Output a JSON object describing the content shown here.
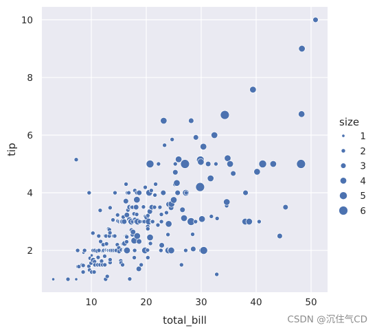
{
  "chart_data": {
    "type": "scatter",
    "title": "",
    "xlabel": "total_bill",
    "ylabel": "tip",
    "xlim": [
      1.0,
      53.0
    ],
    "ylim": [
      0.55,
      10.45
    ],
    "xticks": [
      10,
      20,
      30,
      40,
      50
    ],
    "yticks": [
      2,
      4,
      6,
      8,
      10
    ],
    "grid": true,
    "background": "#eaeaf2",
    "point_color": "#4c72b0",
    "legend": {
      "title": "size",
      "placement": "right",
      "entries": [
        1,
        2,
        3,
        4,
        5,
        6
      ]
    },
    "points": [
      [
        3.07,
        1.0,
        1
      ],
      [
        5.75,
        1.0,
        2
      ],
      [
        7.25,
        1.0,
        1
      ],
      [
        7.25,
        5.15,
        2
      ],
      [
        7.51,
        2.0,
        2
      ],
      [
        7.56,
        1.44,
        2
      ],
      [
        7.74,
        1.44,
        2
      ],
      [
        8.35,
        1.5,
        2
      ],
      [
        8.51,
        1.25,
        2
      ],
      [
        8.52,
        1.48,
        2
      ],
      [
        8.58,
        1.92,
        1
      ],
      [
        8.77,
        2.0,
        2
      ],
      [
        9.55,
        1.45,
        2
      ],
      [
        9.6,
        4.0,
        2
      ],
      [
        9.68,
        1.32,
        2
      ],
      [
        9.78,
        1.73,
        2
      ],
      [
        9.94,
        1.56,
        2
      ],
      [
        10.07,
        1.25,
        2
      ],
      [
        10.07,
        1.83,
        1
      ],
      [
        10.27,
        1.71,
        2
      ],
      [
        10.29,
        2.6,
        2
      ],
      [
        10.33,
        1.67,
        3
      ],
      [
        10.33,
        2.0,
        2
      ],
      [
        10.34,
        1.66,
        3
      ],
      [
        10.34,
        2.0,
        2
      ],
      [
        10.51,
        1.25,
        2
      ],
      [
        10.59,
        1.61,
        2
      ],
      [
        10.63,
        2.0,
        2
      ],
      [
        10.65,
        1.5,
        2
      ],
      [
        11.02,
        1.98,
        2
      ],
      [
        11.17,
        1.5,
        2
      ],
      [
        11.24,
        1.76,
        2
      ],
      [
        11.35,
        2.5,
        2
      ],
      [
        11.38,
        2.0,
        2
      ],
      [
        11.59,
        1.5,
        2
      ],
      [
        11.61,
        3.39,
        2
      ],
      [
        11.69,
        2.31,
        2
      ],
      [
        11.87,
        1.63,
        2
      ],
      [
        12.02,
        1.97,
        1
      ],
      [
        12.03,
        1.5,
        2
      ],
      [
        12.16,
        2.2,
        2
      ],
      [
        12.26,
        2.0,
        2
      ],
      [
        12.43,
        1.8,
        2
      ],
      [
        12.46,
        1.5,
        2
      ],
      [
        12.48,
        2.52,
        2
      ],
      [
        12.54,
        2.5,
        2
      ],
      [
        12.6,
        1.0,
        2
      ],
      [
        12.66,
        2.5,
        2
      ],
      [
        12.69,
        2.0,
        2
      ],
      [
        12.74,
        2.01,
        2
      ],
      [
        12.76,
        2.23,
        2
      ],
      [
        12.9,
        1.1,
        2
      ],
      [
        13.0,
        2.0,
        2
      ],
      [
        13.03,
        2.0,
        2
      ],
      [
        13.13,
        2.0,
        2
      ],
      [
        13.16,
        2.75,
        2
      ],
      [
        13.27,
        2.5,
        2
      ],
      [
        13.28,
        2.72,
        2
      ],
      [
        13.37,
        2.0,
        2
      ],
      [
        13.39,
        2.61,
        2
      ],
      [
        13.42,
        3.48,
        2
      ],
      [
        13.42,
        1.58,
        2
      ],
      [
        13.42,
        1.68,
        2
      ],
      [
        13.51,
        2.0,
        2
      ],
      [
        13.81,
        2.0,
        2
      ],
      [
        13.94,
        3.06,
        2
      ],
      [
        14.07,
        2.5,
        2
      ],
      [
        14.15,
        2.0,
        2
      ],
      [
        14.26,
        2.5,
        2
      ],
      [
        14.31,
        4.0,
        2
      ],
      [
        14.48,
        2.0,
        2
      ],
      [
        14.52,
        2.0,
        2
      ],
      [
        14.73,
        2.2,
        2
      ],
      [
        14.78,
        3.23,
        2
      ],
      [
        14.83,
        3.02,
        2
      ],
      [
        15.01,
        2.09,
        2
      ],
      [
        15.04,
        1.96,
        2
      ],
      [
        15.06,
        3.0,
        2
      ],
      [
        15.36,
        1.64,
        2
      ],
      [
        15.38,
        3.0,
        2
      ],
      [
        15.42,
        1.57,
        2
      ],
      [
        15.48,
        2.02,
        2
      ],
      [
        15.53,
        3.0,
        2
      ],
      [
        15.69,
        1.5,
        2
      ],
      [
        15.69,
        3.0,
        3
      ],
      [
        15.77,
        2.23,
        2
      ],
      [
        15.81,
        3.16,
        2
      ],
      [
        15.95,
        2.0,
        2
      ],
      [
        15.98,
        2.03,
        2
      ],
      [
        15.98,
        3.0,
        3
      ],
      [
        16.0,
        2.0,
        2
      ],
      [
        16.04,
        2.24,
        3
      ],
      [
        16.21,
        2.0,
        3
      ],
      [
        16.27,
        2.5,
        2
      ],
      [
        16.29,
        3.71,
        3
      ],
      [
        16.31,
        2.0,
        3
      ],
      [
        16.32,
        4.3,
        2
      ],
      [
        16.4,
        2.5,
        2
      ],
      [
        16.43,
        2.3,
        2
      ],
      [
        16.45,
        2.47,
        2
      ],
      [
        16.47,
        3.23,
        3
      ],
      [
        16.49,
        2.0,
        4
      ],
      [
        16.58,
        4.0,
        2
      ],
      [
        16.66,
        3.4,
        2
      ],
      [
        16.82,
        4.0,
        2
      ],
      [
        16.93,
        3.07,
        3
      ],
      [
        16.97,
        3.5,
        3
      ],
      [
        16.99,
        1.01,
        2
      ],
      [
        17.07,
        3.0,
        3
      ],
      [
        17.29,
        2.71,
        2
      ],
      [
        17.29,
        3.0,
        4
      ],
      [
        17.31,
        3.5,
        2
      ],
      [
        17.46,
        2.54,
        2
      ],
      [
        17.47,
        3.5,
        2
      ],
      [
        17.51,
        3.0,
        2
      ],
      [
        17.59,
        2.64,
        3
      ],
      [
        17.78,
        3.27,
        2
      ],
      [
        17.81,
        2.34,
        4
      ],
      [
        17.82,
        1.75,
        2
      ],
      [
        17.89,
        2.0,
        2
      ],
      [
        17.92,
        4.08,
        2
      ],
      [
        17.92,
        3.08,
        2
      ],
      [
        18.04,
        3.0,
        2
      ],
      [
        18.15,
        3.5,
        3
      ],
      [
        18.24,
        3.76,
        2
      ],
      [
        18.26,
        3.25,
        2
      ],
      [
        18.28,
        4.0,
        2
      ],
      [
        18.29,
        3.76,
        4
      ],
      [
        18.35,
        2.5,
        4
      ],
      [
        18.43,
        3.0,
        4
      ],
      [
        18.64,
        1.36,
        3
      ],
      [
        18.69,
        2.31,
        3
      ],
      [
        18.71,
        4.0,
        3
      ],
      [
        18.78,
        3.0,
        2
      ],
      [
        19.08,
        1.5,
        2
      ],
      [
        19.44,
        3.0,
        2
      ],
      [
        19.49,
        3.51,
        2
      ],
      [
        19.65,
        3.0,
        2
      ],
      [
        19.77,
        2.0,
        4
      ],
      [
        19.81,
        4.19,
        2
      ],
      [
        19.82,
        3.18,
        2
      ],
      [
        20.08,
        3.15,
        3
      ],
      [
        20.23,
        2.01,
        2
      ],
      [
        20.27,
        2.83,
        2
      ],
      [
        20.29,
        2.75,
        2
      ],
      [
        20.29,
        3.21,
        2
      ],
      [
        20.29,
        1.75,
        2
      ],
      [
        20.45,
        3.0,
        4
      ],
      [
        20.49,
        4.06,
        2
      ],
      [
        20.53,
        4.0,
        4
      ],
      [
        20.65,
        3.35,
        3
      ],
      [
        20.69,
        5.0,
        5
      ],
      [
        20.69,
        2.45,
        4
      ],
      [
        20.76,
        2.24,
        2
      ],
      [
        20.9,
        3.5,
        3
      ],
      [
        20.92,
        4.08,
        2
      ],
      [
        21.01,
        3.5,
        3
      ],
      [
        21.01,
        3.0,
        2
      ],
      [
        21.16,
        3.0,
        2
      ],
      [
        21.5,
        3.5,
        2
      ],
      [
        21.58,
        3.92,
        2
      ],
      [
        21.7,
        4.3,
        2
      ],
      [
        22.12,
        2.88,
        2
      ],
      [
        22.23,
        5.0,
        2
      ],
      [
        22.42,
        3.48,
        2
      ],
      [
        22.49,
        3.5,
        2
      ],
      [
        22.67,
        2.0,
        2
      ],
      [
        22.75,
        3.25,
        2
      ],
      [
        22.76,
        3.0,
        2
      ],
      [
        22.82,
        2.18,
        3
      ],
      [
        23.1,
        4.0,
        3
      ],
      [
        23.17,
        6.5,
        4
      ],
      [
        23.33,
        5.65,
        2
      ],
      [
        23.68,
        3.31,
        2
      ],
      [
        23.95,
        2.55,
        2
      ],
      [
        24.01,
        2.0,
        4
      ],
      [
        24.06,
        3.6,
        3
      ],
      [
        24.08,
        2.92,
        4
      ],
      [
        24.27,
        2.03,
        2
      ],
      [
        24.52,
        3.48,
        3
      ],
      [
        24.55,
        2.0,
        4
      ],
      [
        24.59,
        3.61,
        4
      ],
      [
        24.71,
        5.85,
        2
      ],
      [
        25.0,
        3.75,
        4
      ],
      [
        25.21,
        4.29,
        2
      ],
      [
        25.28,
        5.0,
        2
      ],
      [
        25.29,
        4.71,
        3
      ],
      [
        25.56,
        4.34,
        4
      ],
      [
        25.71,
        4.0,
        3
      ],
      [
        25.89,
        5.16,
        4
      ],
      [
        26.41,
        1.5,
        2
      ],
      [
        26.59,
        3.41,
        3
      ],
      [
        26.86,
        3.14,
        2
      ],
      [
        26.88,
        3.12,
        4
      ],
      [
        27.05,
        5.0,
        6
      ],
      [
        27.18,
        2.0,
        2
      ],
      [
        27.2,
        4.0,
        4
      ],
      [
        27.28,
        4.0,
        2
      ],
      [
        28.15,
        3.0,
        5
      ],
      [
        28.17,
        6.5,
        3
      ],
      [
        28.44,
        2.56,
        2
      ],
      [
        28.55,
        2.05,
        3
      ],
      [
        28.97,
        3.0,
        2
      ],
      [
        29.03,
        5.92,
        3
      ],
      [
        29.8,
        4.2,
        6
      ],
      [
        29.85,
        5.14,
        5
      ],
      [
        29.93,
        5.07,
        4
      ],
      [
        30.06,
        2.0,
        3
      ],
      [
        30.14,
        3.09,
        4
      ],
      [
        30.4,
        5.6,
        4
      ],
      [
        30.46,
        2.0,
        5
      ],
      [
        31.27,
        5.0,
        3
      ],
      [
        31.71,
        4.5,
        4
      ],
      [
        31.85,
        3.18,
        2
      ],
      [
        32.4,
        6.0,
        4
      ],
      [
        32.68,
        5.0,
        2
      ],
      [
        32.83,
        1.17,
        2
      ],
      [
        32.9,
        3.11,
        2
      ],
      [
        34.3,
        6.7,
        6
      ],
      [
        34.63,
        3.55,
        2
      ],
      [
        34.65,
        3.68,
        4
      ],
      [
        34.81,
        5.2,
        4
      ],
      [
        35.26,
        5.0,
        4
      ],
      [
        35.83,
        4.67,
        3
      ],
      [
        38.01,
        3.0,
        4
      ],
      [
        38.07,
        4.0,
        3
      ],
      [
        38.73,
        3.0,
        4
      ],
      [
        39.42,
        7.58,
        4
      ],
      [
        40.17,
        4.73,
        4
      ],
      [
        40.55,
        3.0,
        2
      ],
      [
        41.19,
        5.0,
        5
      ],
      [
        43.11,
        5.0,
        4
      ],
      [
        44.3,
        2.5,
        3
      ],
      [
        45.35,
        3.5,
        3
      ],
      [
        48.17,
        5.0,
        6
      ],
      [
        48.27,
        6.73,
        4
      ],
      [
        48.33,
        9.0,
        4
      ],
      [
        50.81,
        10.0,
        3
      ]
    ]
  },
  "watermark": "CSDN @沉住气CD"
}
